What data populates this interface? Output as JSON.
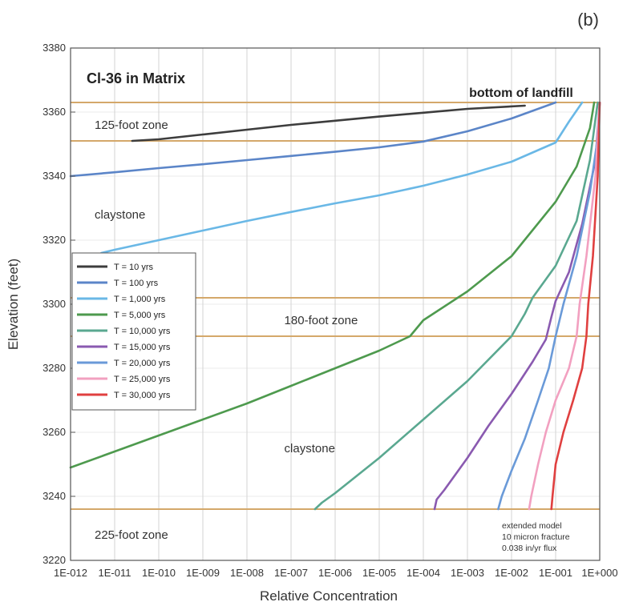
{
  "chart_data": {
    "type": "line",
    "panel_label": "(b)",
    "title": "Cl-36 in Matrix",
    "xlabel": "Relative Concentration",
    "ylabel": "Elevation (feet)",
    "x_scale": "log",
    "xlim": [
      1e-12,
      1
    ],
    "ylim": [
      3220,
      3380
    ],
    "grid": true,
    "legend_position": "left-center",
    "x_ticks": [
      {
        "v": 1e-12,
        "label": "1E-012"
      },
      {
        "v": 1e-11,
        "label": "1E-011"
      },
      {
        "v": 1e-10,
        "label": "1E-010"
      },
      {
        "v": 1e-09,
        "label": "1E-009"
      },
      {
        "v": 1e-08,
        "label": "1E-008"
      },
      {
        "v": 1e-07,
        "label": "1E-007"
      },
      {
        "v": 1e-06,
        "label": "1E-006"
      },
      {
        "v": 1e-05,
        "label": "1E-005"
      },
      {
        "v": 0.0001,
        "label": "1E-004"
      },
      {
        "v": 0.001,
        "label": "1E-003"
      },
      {
        "v": 0.01,
        "label": "1E-002"
      },
      {
        "v": 0.1,
        "label": "1E-001"
      },
      {
        "v": 1,
        "label": "1E+000"
      }
    ],
    "y_ticks": [
      {
        "v": 3220,
        "label": "3220"
      },
      {
        "v": 3240,
        "label": "3240"
      },
      {
        "v": 3260,
        "label": "3260"
      },
      {
        "v": 3280,
        "label": "3280"
      },
      {
        "v": 3300,
        "label": "3300"
      },
      {
        "v": 3320,
        "label": "3320"
      },
      {
        "v": 3340,
        "label": "3340"
      },
      {
        "v": 3360,
        "label": "3360"
      },
      {
        "v": 3380,
        "label": "3380"
      }
    ],
    "horizontal_lines": [
      {
        "y": 3363,
        "color": "#d4a86a"
      },
      {
        "y": 3351,
        "color": "#d4a86a"
      },
      {
        "y": 3302,
        "color": "#d4a86a"
      },
      {
        "y": 3290,
        "color": "#d4a86a"
      },
      {
        "y": 3236,
        "color": "#d4a86a"
      }
    ],
    "annotations": [
      {
        "text": "bottom of landfill",
        "x": 0.25,
        "y": 3366,
        "anchor": "end",
        "style": "bold"
      },
      {
        "text": "125-foot zone",
        "x": 1e-12,
        "y": 3356,
        "anchor": "start",
        "style": "zone"
      },
      {
        "text": "claystone",
        "x": 1e-12,
        "y": 3328,
        "anchor": "start",
        "style": "zone"
      },
      {
        "text": "180-foot zone",
        "x": 2e-08,
        "y": 3295,
        "anchor": "start",
        "style": "zone"
      },
      {
        "text": "claystone",
        "x": 2e-08,
        "y": 3255,
        "anchor": "start",
        "style": "zone"
      },
      {
        "text": "225-foot zone",
        "x": 1e-12,
        "y": 3228,
        "anchor": "start",
        "style": "zone"
      }
    ],
    "note_lines": [
      "extended model",
      "10 micron fracture",
      "0.038 in/yr flux"
    ],
    "series": [
      {
        "name": "T = 10 yrs",
        "color": "#3d3d3d",
        "x": [
          2.5e-11,
          1e-10,
          1e-09,
          1e-08,
          1e-07,
          1e-06,
          1e-05,
          0.0001,
          0.001,
          0.02
        ],
        "y": [
          3351,
          3351.5,
          3353,
          3354.5,
          3356,
          3357.3,
          3358.6,
          3359.8,
          3361,
          3362
        ]
      },
      {
        "name": "T = 100 yrs",
        "color": "#5b85c8",
        "x": [
          1e-12,
          1e-11,
          1e-10,
          1e-09,
          1e-08,
          1e-07,
          1e-06,
          1e-05,
          0.0001,
          0.001,
          0.01,
          0.1
        ],
        "y": [
          3340,
          3341.2,
          3342.5,
          3343.7,
          3345,
          3346.3,
          3347.6,
          3349,
          3350.8,
          3354,
          3358,
          3363
        ]
      },
      {
        "name": "T = 1,000 yrs",
        "color": "#6ab8e6",
        "x": [
          5e-12,
          1e-11,
          1e-10,
          1e-09,
          1e-08,
          1e-07,
          1e-06,
          1e-05,
          0.0001,
          0.001,
          0.01,
          0.1,
          0.2,
          0.4
        ],
        "y": [
          3316,
          3317,
          3320,
          3323,
          3326,
          3328.8,
          3331.5,
          3334,
          3337,
          3340.5,
          3344.5,
          3350.5,
          3357,
          3363
        ]
      },
      {
        "name": "T = 5,000 yrs",
        "color": "#4e9a4e",
        "x": [
          1e-12,
          1e-11,
          1e-10,
          1e-09,
          1e-08,
          1e-07,
          1e-06,
          1e-05,
          5e-05,
          0.0001,
          0.001,
          0.01,
          0.1,
          0.3,
          0.6,
          0.75
        ],
        "y": [
          3249,
          3254,
          3259,
          3264,
          3269,
          3274.5,
          3280,
          3285.5,
          3290,
          3295,
          3304,
          3315,
          3332,
          3343,
          3355,
          3363
        ]
      },
      {
        "name": "T = 10,000 yrs",
        "color": "#5aa890",
        "x": [
          3.5e-07,
          5e-07,
          1e-06,
          1e-05,
          0.0001,
          0.001,
          0.01,
          0.02,
          0.03,
          0.1,
          0.3,
          0.6,
          0.9
        ],
        "y": [
          3236,
          3238,
          3241,
          3252,
          3264,
          3276,
          3290,
          3297,
          3302,
          3312,
          3326,
          3345,
          3363
        ]
      },
      {
        "name": "T = 15,000 yrs",
        "color": "#8a5ab0",
        "x": [
          0.00018,
          0.0002,
          0.0003,
          0.001,
          0.003,
          0.01,
          0.03,
          0.06,
          0.08,
          0.1,
          0.2,
          0.4,
          0.8,
          1.0
        ],
        "y": [
          3236,
          3239,
          3242,
          3252,
          3262,
          3272,
          3282,
          3289,
          3296,
          3301,
          3310,
          3325,
          3345,
          3363
        ]
      },
      {
        "name": "T = 20,000 yrs",
        "color": "#6a9ad8",
        "x": [
          0.005,
          0.006,
          0.01,
          0.02,
          0.04,
          0.07,
          0.1,
          0.15,
          0.3,
          0.6,
          0.9,
          1.0
        ],
        "y": [
          3236,
          3240,
          3248,
          3258,
          3270,
          3280,
          3290,
          3300,
          3315,
          3335,
          3352,
          3363
        ]
      },
      {
        "name": "T = 25,000 yrs",
        "color": "#f2a0c0",
        "x": [
          0.025,
          0.028,
          0.04,
          0.06,
          0.1,
          0.2,
          0.3,
          0.35,
          0.5,
          0.8,
          1.0
        ],
        "y": [
          3236,
          3240,
          3250,
          3260,
          3270,
          3280,
          3290,
          3300,
          3315,
          3340,
          3363
        ]
      },
      {
        "name": "T = 30,000 yrs",
        "color": "#e04040",
        "x": [
          0.08,
          0.085,
          0.1,
          0.15,
          0.25,
          0.4,
          0.5,
          0.55,
          0.7,
          0.9,
          1.0
        ],
        "y": [
          3236,
          3240,
          3250,
          3260,
          3270,
          3280,
          3290,
          3300,
          3315,
          3340,
          3363
        ]
      }
    ]
  }
}
